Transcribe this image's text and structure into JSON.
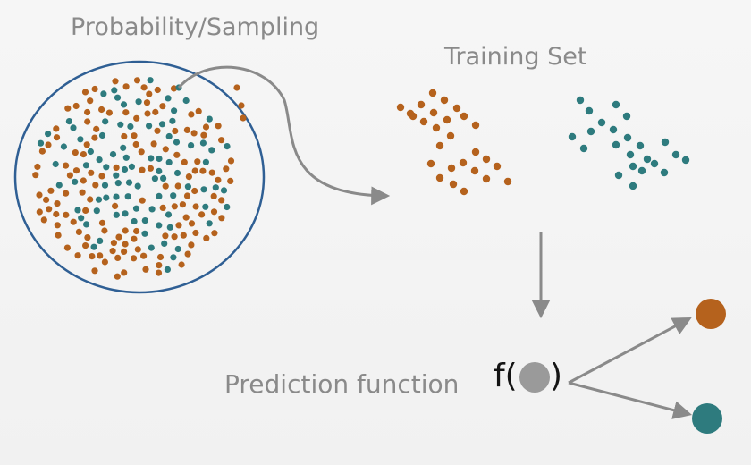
{
  "labels": {
    "population": "Probability/Sampling",
    "training_set": "Training Set",
    "prediction": "Prediction function",
    "formula_open": "f(",
    "formula_close": ")"
  },
  "colors": {
    "background": "#f4f4f4",
    "class_orange": "#b5621d",
    "class_teal": "#2e7b7e",
    "unknown_gray": "#9a9a9a",
    "population_circle": "#2f5f94",
    "arrow_gray": "#8a8a8a",
    "label_gray": "#8a8a8a"
  }
}
